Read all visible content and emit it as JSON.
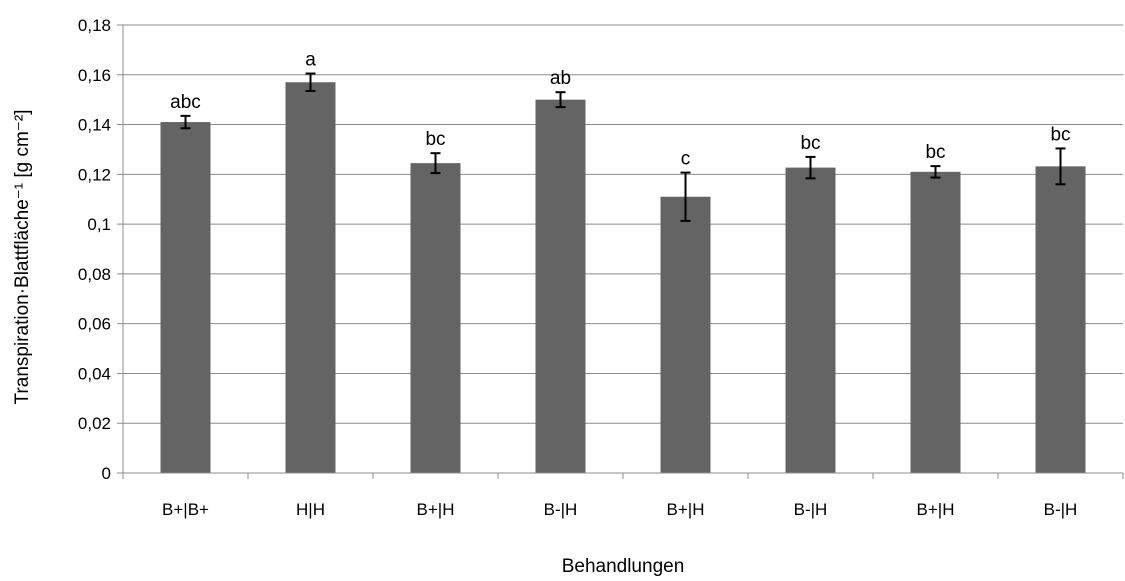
{
  "chart_data": {
    "type": "bar",
    "xlabel": "Behandlungen",
    "ylabel": "Transpiration·Blattfläche⁻¹ [g cm⁻²]",
    "ylim": [
      0,
      0.18
    ],
    "yticks": [
      0,
      0.02,
      0.04,
      0.06,
      0.08,
      0.1,
      0.12,
      0.14,
      0.16,
      0.18
    ],
    "ytick_labels": [
      "0",
      "0,02",
      "0,04",
      "0,06",
      "0,08",
      "0,1",
      "0,12",
      "0,14",
      "0,16",
      "0,18"
    ],
    "grid": true,
    "legend": "none",
    "bar_color": "#646464",
    "categories": [
      "B+|B+",
      "H|H",
      "B+|H",
      "B-|H",
      "B+|H",
      "B-|H",
      "B+|H",
      "B-|H"
    ],
    "values": [
      0.141,
      0.157,
      0.1245,
      0.15,
      0.111,
      0.1227,
      0.121,
      0.1232
    ],
    "errors": [
      0.0025,
      0.0035,
      0.004,
      0.003,
      0.0097,
      0.0043,
      0.0023,
      0.0072
    ],
    "significance_labels": [
      "abc",
      "a",
      "bc",
      "ab",
      "c",
      "bc",
      "bc",
      "bc"
    ]
  }
}
